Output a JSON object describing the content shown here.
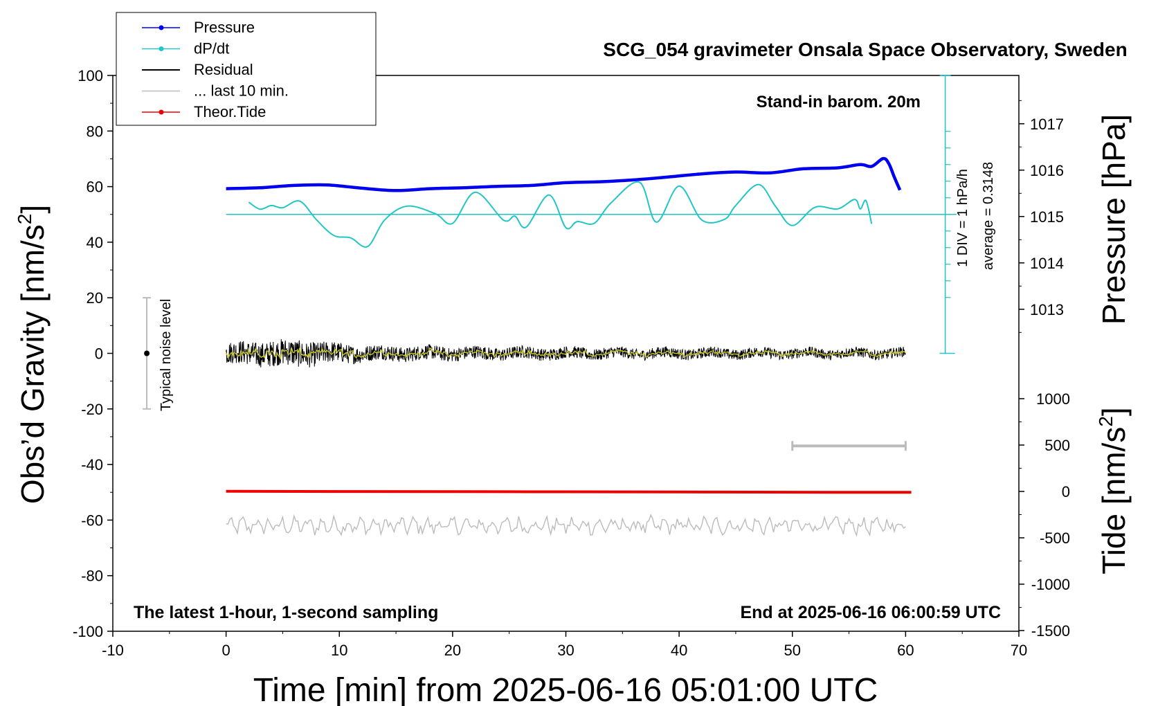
{
  "chart_data": {
    "type": "line",
    "title": "SCG_054 gravimeter Onsala Space Observatory, Sweden",
    "subtitle_left": "The latest 1-hour, 1-second sampling",
    "subtitle_right": "End at 2025-06-16 06:00:59 UTC",
    "annotation_barom": "Stand-in barom. 20m",
    "annotation_div": "1 DIV = 1 hPa/h",
    "annotation_avg": "average = 0.3148",
    "noise_label": "Typical noise level",
    "xlabel": "Time [min] from 2025-06-16 05:01:00 UTC",
    "ylabel_left_main": "Obs’d Gravity [nm/s",
    "ylabel_left_sup": "2",
    "ylabel_left_end": "]",
    "ylabel_right_top": "Pressure [hPa]",
    "ylabel_right_bottom_main": "Tide [nm/s",
    "ylabel_right_bottom_sup": "2",
    "ylabel_right_bottom_end": "]",
    "xlim": [
      -10,
      70
    ],
    "ylim": [
      -100,
      100
    ],
    "x_ticks": [
      -10,
      0,
      10,
      20,
      30,
      40,
      50,
      60,
      70
    ],
    "y_ticks": [
      100,
      80,
      60,
      40,
      20,
      0,
      -20,
      -40,
      -60,
      -80,
      -100
    ],
    "pressure_ticks": [
      1017,
      1016,
      1015,
      1014,
      1013
    ],
    "pressure_range": [
      1012,
      1018
    ],
    "tide_ticks": [
      1000,
      500,
      0,
      -500,
      -1000,
      -1500
    ],
    "tide_range": [
      -1500,
      1000
    ],
    "legend": [
      {
        "label": "Pressure",
        "color": "#0000ee",
        "marker": true
      },
      {
        "label": "dP/dt",
        "color": "#22c5c5",
        "marker": true
      },
      {
        "label": "Residual",
        "color": "#000000",
        "marker": false
      },
      {
        "label": "... last 10 min.",
        "color": "#bbbbbb",
        "marker": false
      },
      {
        "label": "Theor.Tide",
        "color": "#ee0000",
        "marker": true
      }
    ],
    "series": [
      {
        "name": "Pressure",
        "color": "#0000ee",
        "unit": "hPa",
        "x": [
          0,
          3,
          6,
          9,
          12,
          15,
          18,
          21,
          24,
          27,
          30,
          33,
          36,
          39,
          42,
          45,
          48,
          51,
          54,
          56,
          57,
          58,
          58.5,
          59,
          59.5
        ],
        "y": [
          1015.6,
          1015.62,
          1015.67,
          1015.68,
          1015.61,
          1015.56,
          1015.6,
          1015.62,
          1015.65,
          1015.67,
          1015.73,
          1015.75,
          1015.79,
          1015.85,
          1015.92,
          1015.96,
          1015.94,
          1016.03,
          1016.05,
          1016.12,
          1016.08,
          1016.25,
          1016.15,
          1015.85,
          1015.57
        ]
      },
      {
        "name": "dP/dt",
        "color": "#22c5c5",
        "unit": "hPa/h",
        "x": [
          2,
          3,
          4,
          5,
          6.5,
          8,
          9.5,
          11,
          12.5,
          14,
          16,
          18.5,
          20,
          22,
          24.5,
          25.5,
          26.5,
          28.5,
          30,
          31,
          32.5,
          34,
          36.5,
          38,
          40,
          42,
          44,
          45,
          47,
          48.5,
          50,
          52,
          54,
          55.5,
          56,
          56.5,
          57
        ],
        "y": [
          1.1,
          0.47,
          0.8,
          0.6,
          1.2,
          -0.5,
          -1.9,
          -2.12,
          -2.9,
          -0.5,
          0.75,
          0.05,
          -0.8,
          2.0,
          -0.52,
          -0.16,
          -1.15,
          1.75,
          -1.2,
          -0.65,
          -0.8,
          1.05,
          2.9,
          -0.7,
          2.55,
          -0.5,
          -0.45,
          0.8,
          2.7,
          0.75,
          -1.0,
          0.65,
          0.5,
          1.35,
          0.5,
          1.25,
          -0.85
        ]
      },
      {
        "name": "Residual",
        "color": "#000000",
        "unit": "nm/s2",
        "x_range": [
          0,
          60
        ],
        "baseline": 0,
        "amplitude_profile": {
          "x": [
            0,
            6,
            12,
            20,
            35,
            60
          ],
          "amp": [
            4,
            5,
            3,
            2.5,
            2,
            1.8
          ]
        }
      },
      {
        "name": "Residual smoothed",
        "color": "#c8c820",
        "unit": "nm/s2",
        "x_range": [
          0,
          60
        ],
        "baseline": 0
      },
      {
        "name": "... last 10 min.",
        "color": "#bbbbbb",
        "unit": "nm/s2",
        "x_range": [
          0,
          60
        ],
        "baseline": -62,
        "amplitude": 3
      },
      {
        "name": "Theor.Tide",
        "color": "#ee0000",
        "unit": "nm/s2",
        "x": [
          0,
          10,
          20,
          30,
          40,
          50,
          60.5
        ],
        "y": [
          1.5,
          -1,
          -2.5,
          -4,
          -6,
          -8,
          -10
        ]
      }
    ],
    "noise_bar": {
      "x": -7,
      "y_top": 20,
      "y_bottom": -20,
      "center": 0
    },
    "scale_bar": {
      "x_start": 50,
      "x_end": 60,
      "y": -33.3
    }
  }
}
